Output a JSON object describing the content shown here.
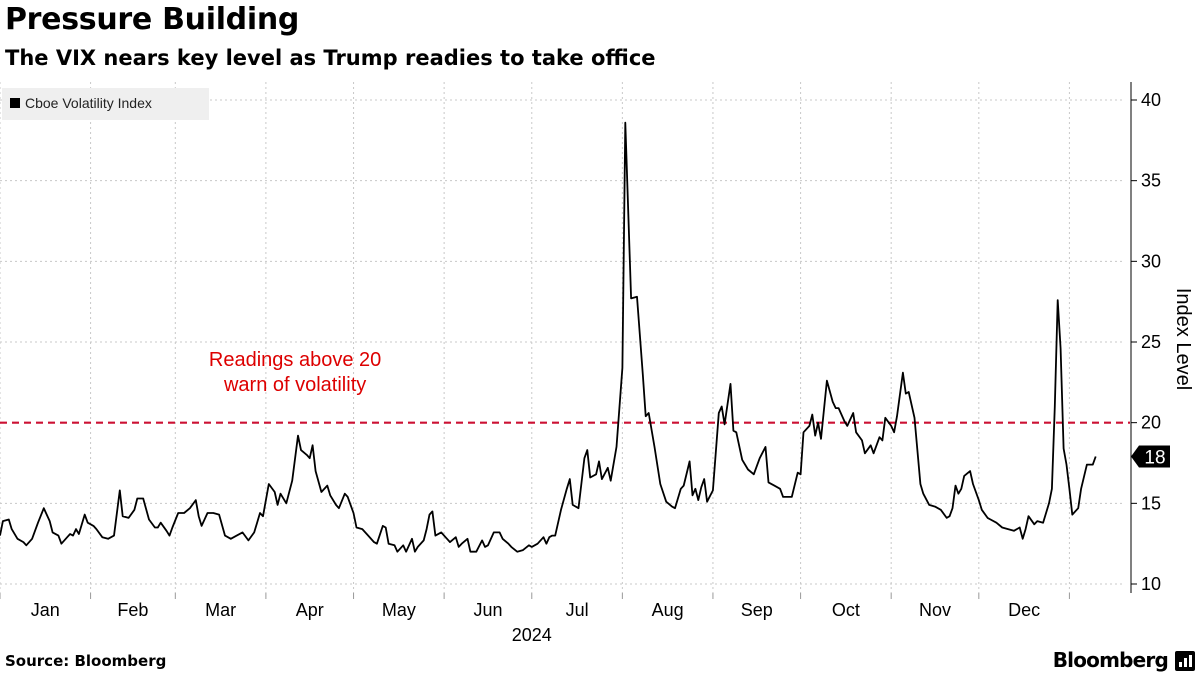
{
  "title": "Pressure Building",
  "subtitle": "The VIX nears key level as Trump readies to take office",
  "footer": {
    "source": "Source: Bloomberg",
    "brand": "Bloomberg"
  },
  "icons": {
    "brand_logo": "bloomberg-terminal-icon"
  },
  "chart_data": {
    "type": "line",
    "title": "Pressure Building",
    "subtitle": "The VIX nears key level as Trump readies to take office",
    "xlabel": "2024",
    "ylabel": "Index Level",
    "ylim": [
      9.5,
      41
    ],
    "yticks": [
      10,
      15,
      20,
      25,
      30,
      35,
      40
    ],
    "grid": true,
    "legend": {
      "position": "top-left",
      "entries": [
        {
          "label": "Cboe Volatility Index",
          "color": "#000000"
        }
      ]
    },
    "month_labels": [
      "Jan",
      "Feb",
      "Mar",
      "Apr",
      "May",
      "Jun",
      "Jul",
      "Aug",
      "Sep",
      "Oct",
      "Nov",
      "Dec"
    ],
    "x_range_days": [
      0,
      384
    ],
    "reference_line": {
      "value": 20,
      "color": "#cc1133",
      "style": "dashed"
    },
    "annotation": {
      "text_lines": [
        "Readings above 20",
        "warn of volatility"
      ],
      "color": "#dd0000",
      "at_day": 101,
      "at_value": 23.4
    },
    "last_value_label": "18",
    "series": [
      {
        "name": "Cboe Volatility Index",
        "color": "#000000",
        "points": [
          [
            0,
            13.0
          ],
          [
            1,
            13.9
          ],
          [
            3,
            14.0
          ],
          [
            4,
            13.4
          ],
          [
            6,
            12.8
          ],
          [
            8,
            12.6
          ],
          [
            9,
            12.4
          ],
          [
            11,
            12.8
          ],
          [
            13,
            13.8
          ],
          [
            15,
            14.7
          ],
          [
            17,
            13.9
          ],
          [
            18,
            13.2
          ],
          [
            20,
            13.0
          ],
          [
            21,
            12.5
          ],
          [
            23,
            12.9
          ],
          [
            24,
            13.1
          ],
          [
            25,
            13.0
          ],
          [
            26,
            13.4
          ],
          [
            27,
            13.1
          ],
          [
            29,
            14.3
          ],
          [
            30,
            13.8
          ],
          [
            32,
            13.6
          ],
          [
            33,
            13.4
          ],
          [
            35,
            12.9
          ],
          [
            37,
            12.8
          ],
          [
            39,
            13.0
          ],
          [
            41,
            15.8
          ],
          [
            42,
            14.2
          ],
          [
            44,
            14.1
          ],
          [
            46,
            14.6
          ],
          [
            47,
            15.3
          ],
          [
            49,
            15.3
          ],
          [
            51,
            14.0
          ],
          [
            53,
            13.5
          ],
          [
            54,
            13.5
          ],
          [
            55,
            13.8
          ],
          [
            57,
            13.3
          ],
          [
            58,
            13.0
          ],
          [
            59,
            13.5
          ],
          [
            61,
            14.4
          ],
          [
            63,
            14.4
          ],
          [
            65,
            14.7
          ],
          [
            67,
            15.2
          ],
          [
            68,
            14.2
          ],
          [
            69,
            13.6
          ],
          [
            71,
            14.4
          ],
          [
            73,
            14.4
          ],
          [
            75,
            14.3
          ],
          [
            77,
            13.0
          ],
          [
            79,
            12.8
          ],
          [
            81,
            13.0
          ],
          [
            83,
            13.2
          ],
          [
            85,
            12.7
          ],
          [
            87,
            13.2
          ],
          [
            88,
            13.8
          ],
          [
            89,
            14.4
          ],
          [
            90,
            14.2
          ],
          [
            92,
            16.2
          ],
          [
            94,
            15.7
          ],
          [
            95,
            14.9
          ],
          [
            96,
            15.6
          ],
          [
            98,
            15.0
          ],
          [
            100,
            16.4
          ],
          [
            102,
            19.2
          ],
          [
            103,
            18.3
          ],
          [
            105,
            18.0
          ],
          [
            106,
            17.8
          ],
          [
            107,
            18.6
          ],
          [
            108,
            17.0
          ],
          [
            110,
            15.7
          ],
          [
            112,
            16.1
          ],
          [
            113,
            15.5
          ],
          [
            115,
            14.9
          ],
          [
            116,
            14.7
          ],
          [
            118,
            15.6
          ],
          [
            119,
            15.4
          ],
          [
            121,
            14.4
          ],
          [
            122,
            13.5
          ],
          [
            124,
            13.4
          ],
          [
            126,
            13.0
          ],
          [
            128,
            12.6
          ],
          [
            129,
            12.5
          ],
          [
            131,
            13.6
          ],
          [
            132,
            13.5
          ],
          [
            133,
            12.5
          ],
          [
            135,
            12.4
          ],
          [
            136,
            12.0
          ],
          [
            138,
            12.4
          ],
          [
            139,
            12.0
          ],
          [
            141,
            12.8
          ],
          [
            142,
            12.0
          ],
          [
            143,
            12.3
          ],
          [
            145,
            12.7
          ],
          [
            146,
            13.4
          ],
          [
            147,
            14.3
          ],
          [
            148,
            14.5
          ],
          [
            149,
            13.0
          ],
          [
            151,
            13.2
          ],
          [
            153,
            12.8
          ],
          [
            154,
            12.6
          ],
          [
            156,
            12.9
          ],
          [
            157,
            12.3
          ],
          [
            158,
            12.5
          ],
          [
            160,
            12.8
          ],
          [
            161,
            12.0
          ],
          [
            163,
            12.0
          ],
          [
            165,
            12.7
          ],
          [
            166,
            12.3
          ],
          [
            167,
            12.4
          ],
          [
            169,
            13.2
          ],
          [
            171,
            13.2
          ],
          [
            172,
            12.8
          ],
          [
            174,
            12.5
          ],
          [
            175,
            12.3
          ],
          [
            177,
            12.0
          ],
          [
            179,
            12.1
          ],
          [
            181,
            12.4
          ],
          [
            182,
            12.3
          ],
          [
            184,
            12.5
          ],
          [
            186,
            12.9
          ],
          [
            187,
            12.5
          ],
          [
            188,
            12.9
          ],
          [
            189,
            13.0
          ],
          [
            190,
            13.0
          ],
          [
            192,
            14.6
          ],
          [
            194,
            15.9
          ],
          [
            195,
            16.5
          ],
          [
            196,
            14.9
          ],
          [
            198,
            14.7
          ],
          [
            200,
            17.8
          ],
          [
            201,
            18.3
          ],
          [
            202,
            16.6
          ],
          [
            204,
            16.8
          ],
          [
            205,
            17.6
          ],
          [
            206,
            16.5
          ],
          [
            208,
            17.2
          ],
          [
            209,
            16.4
          ],
          [
            211,
            18.5
          ],
          [
            213,
            23.4
          ],
          [
            214,
            38.6
          ],
          [
            216,
            27.7
          ],
          [
            218,
            27.8
          ],
          [
            220,
            23.0
          ],
          [
            221,
            20.4
          ],
          [
            222,
            20.6
          ],
          [
            224,
            18.5
          ],
          [
            226,
            16.2
          ],
          [
            228,
            15.1
          ],
          [
            230,
            14.8
          ],
          [
            231,
            14.7
          ],
          [
            233,
            15.9
          ],
          [
            234,
            16.1
          ],
          [
            236,
            17.6
          ],
          [
            237,
            15.5
          ],
          [
            238,
            15.9
          ],
          [
            239,
            15.2
          ],
          [
            240,
            16.0
          ],
          [
            241,
            16.5
          ],
          [
            242,
            15.1
          ],
          [
            244,
            15.8
          ],
          [
            246,
            20.6
          ],
          [
            247,
            21.0
          ],
          [
            248,
            19.9
          ],
          [
            250,
            22.4
          ],
          [
            251,
            19.5
          ],
          [
            252,
            19.4
          ],
          [
            254,
            17.7
          ],
          [
            256,
            17.1
          ],
          [
            258,
            16.8
          ],
          [
            260,
            17.8
          ],
          [
            262,
            18.5
          ],
          [
            263,
            16.3
          ],
          [
            265,
            16.1
          ],
          [
            267,
            15.9
          ],
          [
            268,
            15.4
          ],
          [
            270,
            15.4
          ],
          [
            271,
            15.4
          ],
          [
            273,
            16.9
          ],
          [
            274,
            16.8
          ],
          [
            275,
            19.4
          ],
          [
            277,
            19.8
          ],
          [
            278,
            20.5
          ],
          [
            279,
            19.2
          ],
          [
            280,
            20.0
          ],
          [
            281,
            19.0
          ],
          [
            283,
            22.6
          ],
          [
            285,
            21.3
          ],
          [
            286,
            20.9
          ],
          [
            287,
            20.9
          ],
          [
            289,
            20.1
          ],
          [
            290,
            19.8
          ],
          [
            292,
            20.6
          ],
          [
            293,
            19.4
          ],
          [
            295,
            18.9
          ],
          [
            296,
            18.1
          ],
          [
            298,
            18.6
          ],
          [
            299,
            18.1
          ],
          [
            301,
            19.1
          ],
          [
            302,
            18.9
          ],
          [
            303,
            20.3
          ],
          [
            305,
            19.8
          ],
          [
            306,
            19.4
          ],
          [
            307,
            20.4
          ],
          [
            309,
            23.1
          ],
          [
            310,
            21.8
          ],
          [
            311,
            21.9
          ],
          [
            313,
            20.3
          ],
          [
            315,
            16.2
          ],
          [
            316,
            15.6
          ],
          [
            318,
            14.9
          ],
          [
            320,
            14.8
          ],
          [
            322,
            14.6
          ],
          [
            324,
            14.1
          ],
          [
            325,
            14.2
          ],
          [
            326,
            14.7
          ],
          [
            327,
            16.1
          ],
          [
            328,
            15.6
          ],
          [
            329,
            15.9
          ],
          [
            330,
            16.7
          ],
          [
            332,
            17.0
          ],
          [
            333,
            16.2
          ],
          [
            335,
            15.2
          ],
          [
            336,
            14.6
          ],
          [
            338,
            14.1
          ],
          [
            339,
            14.0
          ],
          [
            341,
            13.8
          ],
          [
            343,
            13.5
          ],
          [
            345,
            13.4
          ],
          [
            347,
            13.3
          ],
          [
            349,
            13.5
          ],
          [
            350,
            12.8
          ],
          [
            351,
            13.4
          ],
          [
            352,
            14.2
          ],
          [
            354,
            13.7
          ],
          [
            355,
            13.9
          ],
          [
            357,
            13.8
          ],
          [
            359,
            15.0
          ],
          [
            360,
            15.9
          ],
          [
            361,
            21.0
          ],
          [
            362,
            27.6
          ],
          [
            363,
            24.6
          ],
          [
            364,
            18.4
          ],
          [
            365,
            17.4
          ],
          [
            366,
            15.9
          ],
          [
            367,
            14.3
          ],
          [
            369,
            14.7
          ],
          [
            370,
            15.9
          ],
          [
            372,
            17.4
          ],
          [
            373,
            17.4
          ],
          [
            374,
            17.4
          ],
          [
            375,
            17.9
          ]
        ]
      }
    ]
  }
}
